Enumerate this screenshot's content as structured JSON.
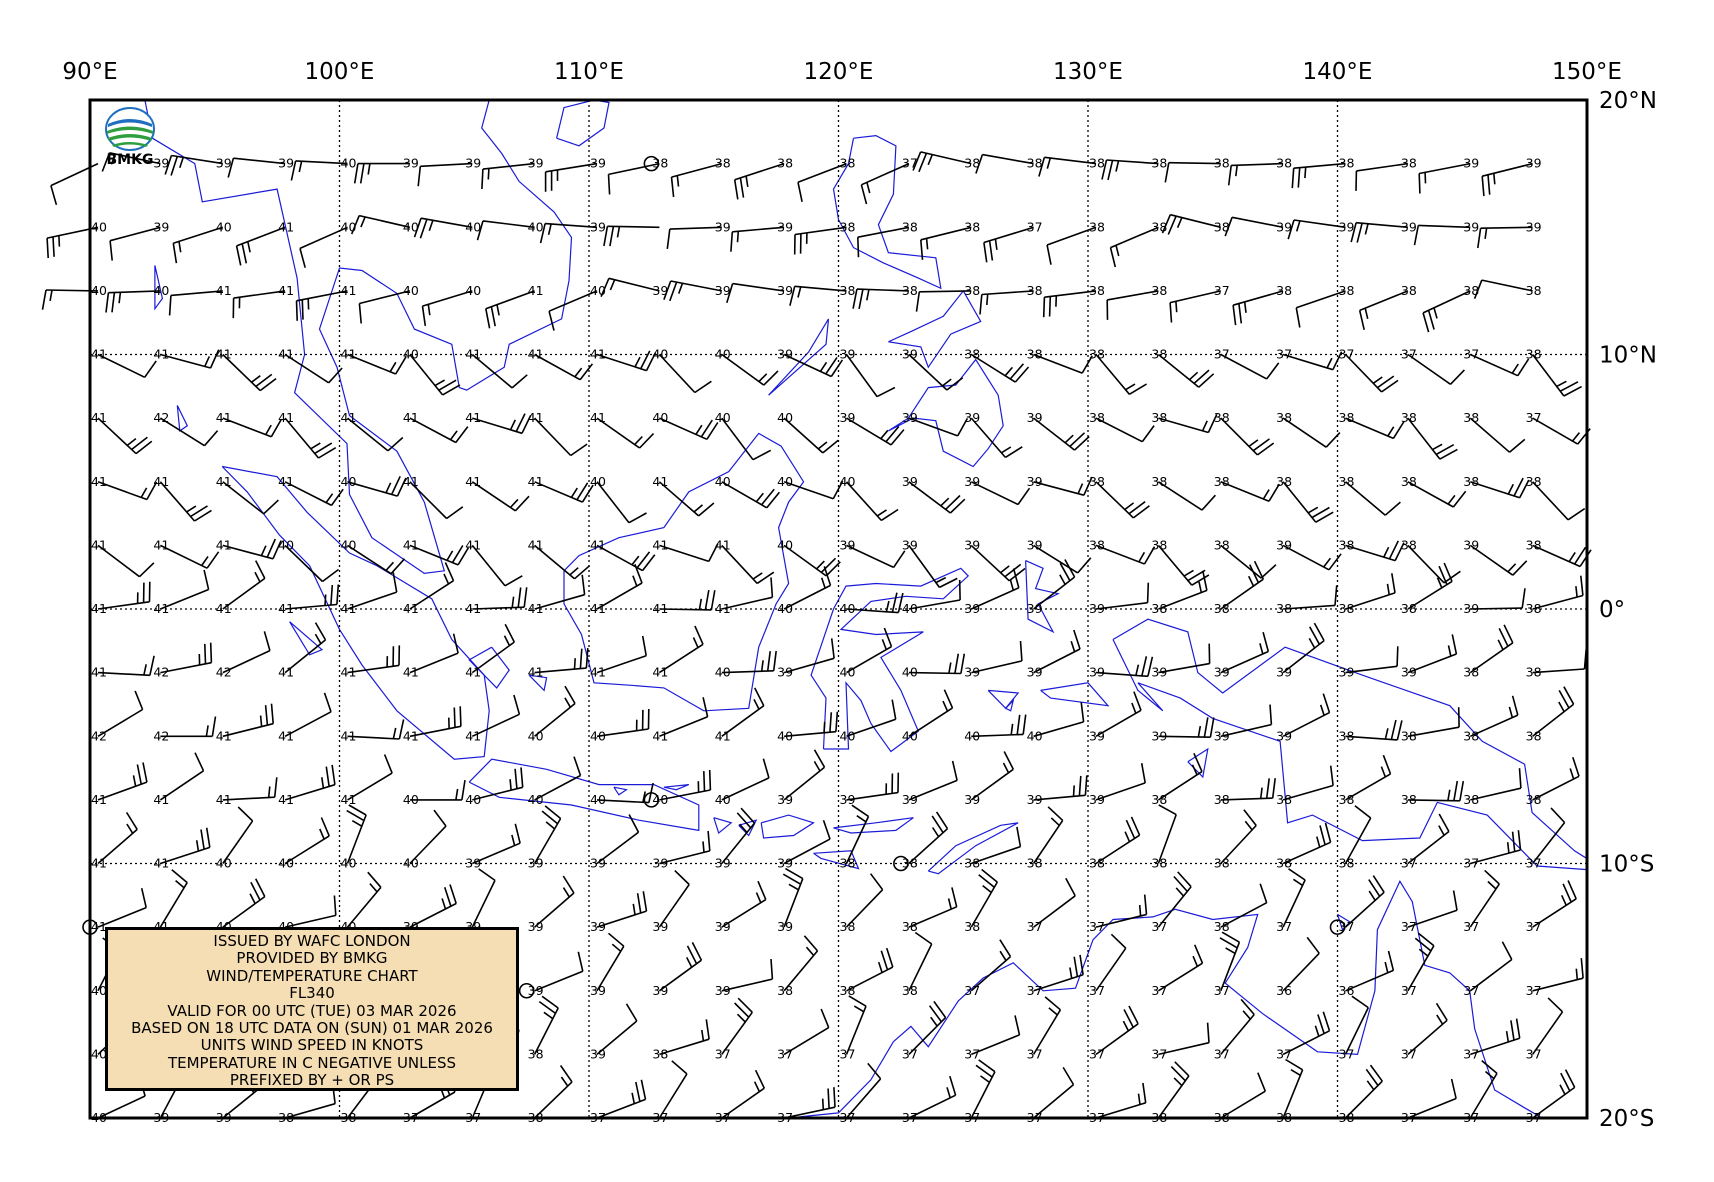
{
  "map": {
    "lon_labels": [
      "90°E",
      "100°E",
      "110°E",
      "120°E",
      "130°E",
      "140°E",
      "150°E"
    ],
    "lat_labels": [
      "20°N",
      "10°N",
      "0°",
      "10°S",
      "20°S"
    ],
    "coastline_color": "#1b1bd8",
    "grid_style": "dotted"
  },
  "logo": {
    "text": "BMKG",
    "colors": [
      "#1f6fc0",
      "#2e9e3e"
    ]
  },
  "info_box": {
    "background": "#f5deb3",
    "lines": [
      "ISSUED BY WAFC LONDON",
      "PROVIDED BY BMKG",
      "WIND/TEMPERATURE CHART",
      "FL340",
      "VALID FOR 00 UTC (TUE) 03 MAR 2026",
      "BASED ON 18 UTC DATA ON (SUN) 01 MAR 2026",
      "UNITS WIND SPEED IN KNOTS",
      "TEMPERATURE IN C NEGATIVE UNLESS",
      "PREFIXED BY + OR PS"
    ]
  },
  "temperature_rows": [
    [
      "",
      "39",
      "39",
      "39",
      "40",
      "39",
      "39",
      "39",
      "39",
      "38",
      "38",
      "38",
      "38",
      "37",
      "38",
      "38",
      "38",
      "38",
      "38",
      "38",
      "38",
      "38",
      "39",
      "39"
    ],
    [
      "40",
      "39",
      "40",
      "41",
      "40",
      "40",
      "40",
      "40",
      "39",
      "",
      "39",
      "39",
      "38",
      "38",
      "38",
      "37",
      "38",
      "38",
      "38",
      "39",
      "39",
      "39",
      "39",
      "39"
    ],
    [
      "40",
      "40",
      "41",
      "41",
      "41",
      "40",
      "40",
      "41",
      "40",
      "39",
      "39",
      "39",
      "38",
      "38",
      "38",
      "38",
      "38",
      "38",
      "37",
      "38",
      "38",
      "38",
      "38",
      "38"
    ],
    [
      "41",
      "41",
      "41",
      "41",
      "41",
      "40",
      "41",
      "41",
      "41",
      "40",
      "40",
      "39",
      "39",
      "39",
      "38",
      "38",
      "38",
      "38",
      "37",
      "37",
      "37",
      "37",
      "37",
      "38"
    ],
    [
      "41",
      "42",
      "41",
      "41",
      "41",
      "41",
      "41",
      "41",
      "41",
      "40",
      "40",
      "40",
      "39",
      "39",
      "39",
      "39",
      "38",
      "38",
      "38",
      "38",
      "38",
      "38",
      "38",
      "37"
    ],
    [
      "41",
      "41",
      "41",
      "41",
      "40",
      "41",
      "41",
      "41",
      "40",
      "41",
      "40",
      "40",
      "40",
      "39",
      "39",
      "39",
      "38",
      "38",
      "38",
      "38",
      "38",
      "38",
      "38",
      "38"
    ],
    [
      "41",
      "41",
      "41",
      "40",
      "40",
      "41",
      "41",
      "41",
      "41",
      "41",
      "41",
      "40",
      "39",
      "39",
      "39",
      "39",
      "38",
      "38",
      "38",
      "39",
      "38",
      "38",
      "39",
      "38"
    ],
    [
      "41",
      "41",
      "41",
      "41",
      "41",
      "41",
      "41",
      "41",
      "41",
      "41",
      "41",
      "40",
      "40",
      "40",
      "39",
      "39",
      "39",
      "38",
      "38",
      "38",
      "38",
      "38",
      "39",
      "38"
    ],
    [
      "41",
      "42",
      "42",
      "41",
      "41",
      "41",
      "41",
      "41",
      "41",
      "41",
      "40",
      "39",
      "40",
      "40",
      "39",
      "39",
      "39",
      "39",
      "39",
      "39",
      "39",
      "39",
      "38",
      "38"
    ],
    [
      "42",
      "42",
      "41",
      "41",
      "41",
      "41",
      "41",
      "40",
      "40",
      "41",
      "41",
      "40",
      "40",
      "40",
      "40",
      "40",
      "39",
      "39",
      "39",
      "39",
      "38",
      "38",
      "38",
      "38"
    ],
    [
      "41",
      "41",
      "41",
      "41",
      "41",
      "40",
      "40",
      "40",
      "40",
      "40",
      "40",
      "39",
      "39",
      "39",
      "39",
      "39",
      "39",
      "38",
      "38",
      "38",
      "38",
      "38",
      "38",
      "38"
    ],
    [
      "41",
      "41",
      "40",
      "40",
      "40",
      "40",
      "39",
      "39",
      "39",
      "39",
      "39",
      "39",
      "38",
      "38",
      "38",
      "38",
      "38",
      "38",
      "38",
      "38",
      "38",
      "37",
      "37",
      "37"
    ],
    [
      "41",
      "41",
      "40",
      "40",
      "40",
      "39",
      "39",
      "39",
      "39",
      "39",
      "39",
      "39",
      "38",
      "38",
      "38",
      "37",
      "37",
      "37",
      "38",
      "37",
      "37",
      "37",
      "37",
      "37"
    ],
    [
      "40",
      "",
      "",
      "",
      "",
      "",
      "",
      "39",
      "39",
      "39",
      "39",
      "38",
      "38",
      "38",
      "37",
      "37",
      "37",
      "37",
      "37",
      "36",
      "36",
      "37",
      "37",
      "37"
    ],
    [
      "40",
      "",
      "",
      "",
      "",
      "",
      "",
      "38",
      "39",
      "38",
      "37",
      "37",
      "37",
      "37",
      "37",
      "37",
      "37",
      "37",
      "37",
      "37",
      "37",
      "37",
      "37",
      "37"
    ],
    [
      "40",
      "39",
      "39",
      "38",
      "38",
      "37",
      "37",
      "38",
      "37",
      "37",
      "37",
      "37",
      "37",
      "37",
      "37",
      "37",
      "37",
      "38",
      "38",
      "38",
      "38",
      "37",
      "37",
      "37"
    ]
  ],
  "calm_circles": [
    {
      "lat": 17.5,
      "lon": 112.5
    },
    {
      "lat": -7.5,
      "lon": 112.5
    },
    {
      "lat": -10,
      "lon": 122.5
    },
    {
      "lat": -12.5,
      "lon": 140
    },
    {
      "lat": -12.5,
      "lon": 90
    },
    {
      "lat": -15,
      "lon": 107.5
    }
  ]
}
